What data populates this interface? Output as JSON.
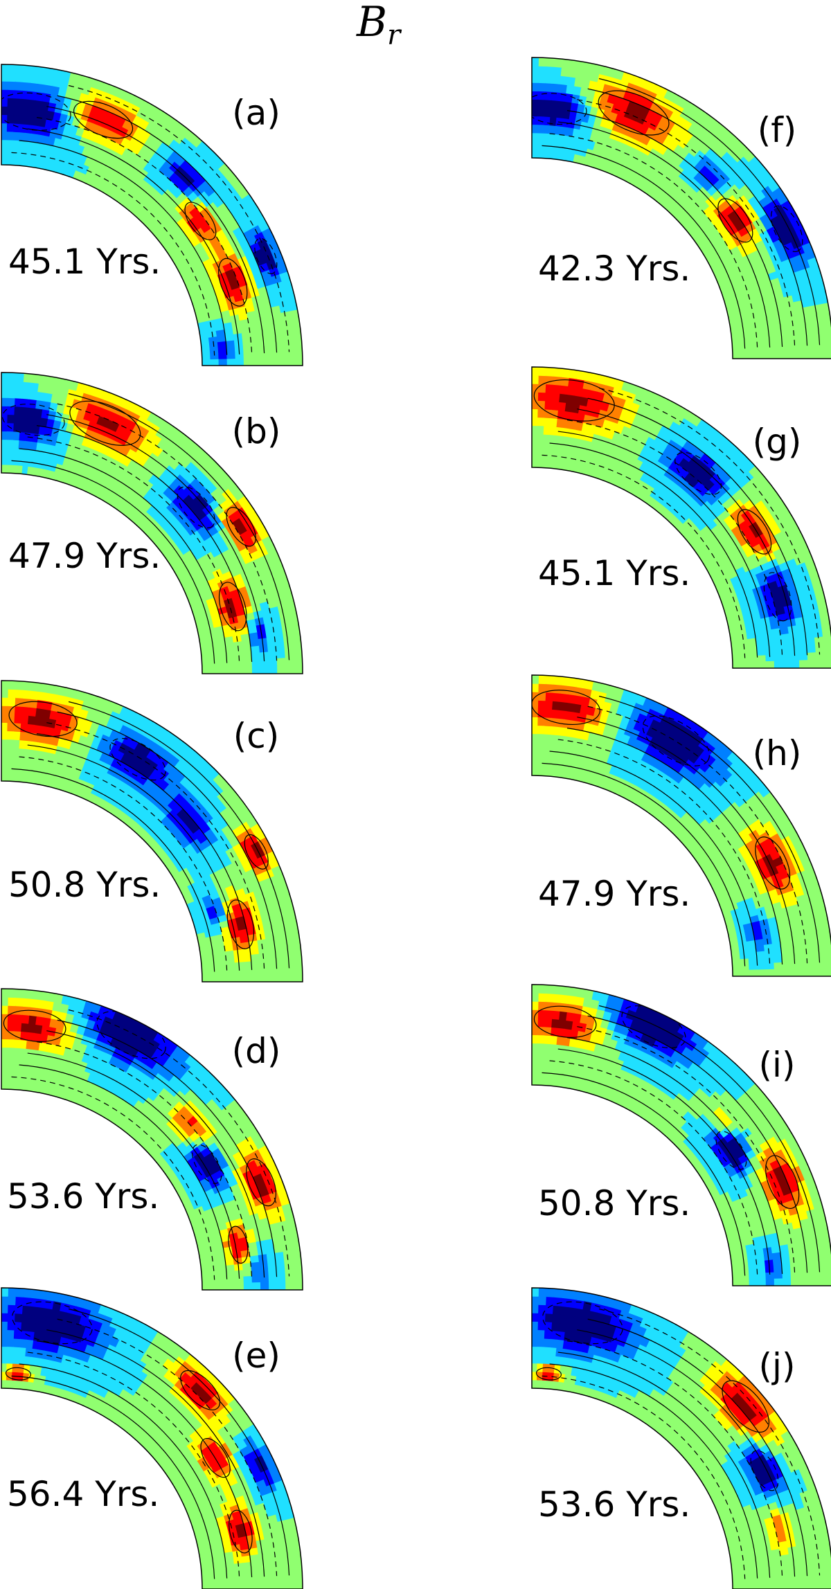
{
  "figure": {
    "title": "B",
    "title_sub": "r"
  },
  "colormap": [
    "#00007f",
    "#0000ff",
    "#0080ff",
    "#20e0ff",
    "#90ff70",
    "#ffff00",
    "#ff8000",
    "#ff0000",
    "#7f0000"
  ],
  "panels": [
    {
      "label": "(a)",
      "time": "45.1 Yrs.",
      "blobs": [
        {
          "t": 0.08,
          "r": 0.55,
          "v": -1.0,
          "s": 0.12
        },
        {
          "t": 0.25,
          "r": 0.65,
          "v": 1.0,
          "s": 0.1
        },
        {
          "t": 0.5,
          "r": 0.62,
          "v": -0.8,
          "s": 0.07
        },
        {
          "t": 0.6,
          "r": 0.45,
          "v": 0.9,
          "s": 0.07
        },
        {
          "t": 0.78,
          "r": 0.45,
          "v": 1.0,
          "s": 0.08
        },
        {
          "t": 0.75,
          "r": 0.85,
          "v": -0.9,
          "s": 0.06
        },
        {
          "t": 0.95,
          "r": 0.2,
          "v": -0.6,
          "s": 0.05
        }
      ]
    },
    {
      "label": "(b)",
      "time": "47.9 Yrs.",
      "blobs": [
        {
          "t": 0.08,
          "r": 0.55,
          "v": -1.0,
          "s": 0.1
        },
        {
          "t": 0.25,
          "r": 0.7,
          "v": 1.0,
          "s": 0.12
        },
        {
          "t": 0.55,
          "r": 0.55,
          "v": -0.9,
          "s": 0.08
        },
        {
          "t": 0.65,
          "r": 0.8,
          "v": 1.0,
          "s": 0.07
        },
        {
          "t": 0.82,
          "r": 0.4,
          "v": 1.0,
          "s": 0.08
        },
        {
          "t": 0.9,
          "r": 0.6,
          "v": -0.6,
          "s": 0.05
        }
      ]
    },
    {
      "label": "(c)",
      "time": "50.8 Yrs.",
      "blobs": [
        {
          "t": 0.1,
          "r": 0.65,
          "v": 1.0,
          "s": 0.11
        },
        {
          "t": 0.35,
          "r": 0.6,
          "v": -0.9,
          "s": 0.1
        },
        {
          "t": 0.55,
          "r": 0.45,
          "v": -0.8,
          "s": 0.08
        },
        {
          "t": 0.7,
          "r": 0.85,
          "v": 1.0,
          "s": 0.06
        },
        {
          "t": 0.85,
          "r": 0.45,
          "v": 1.0,
          "s": 0.08
        },
        {
          "t": 0.8,
          "r": 0.25,
          "v": -0.7,
          "s": 0.05
        }
      ]
    },
    {
      "label": "(d)",
      "time": "53.6 Yrs.",
      "blobs": [
        {
          "t": 0.08,
          "r": 0.65,
          "v": 1.0,
          "s": 0.1
        },
        {
          "t": 0.3,
          "r": 0.85,
          "v": -1.0,
          "s": 0.12
        },
        {
          "t": 0.55,
          "r": 0.5,
          "v": 0.8,
          "s": 0.07
        },
        {
          "t": 0.65,
          "r": 0.4,
          "v": -1.0,
          "s": 0.07
        },
        {
          "t": 0.75,
          "r": 0.8,
          "v": 1.0,
          "s": 0.08
        },
        {
          "t": 0.88,
          "r": 0.4,
          "v": 0.9,
          "s": 0.06
        },
        {
          "t": 0.95,
          "r": 0.6,
          "v": -0.5,
          "s": 0.05
        }
      ]
    },
    {
      "label": "(e)",
      "time": "56.4 Yrs.",
      "blobs": [
        {
          "t": 0.12,
          "r": 0.7,
          "v": -1.0,
          "s": 0.13
        },
        {
          "t": 0.5,
          "r": 0.8,
          "v": 1.0,
          "s": 0.08
        },
        {
          "t": 0.65,
          "r": 0.5,
          "v": 0.9,
          "s": 0.07
        },
        {
          "t": 0.72,
          "r": 0.85,
          "v": -0.8,
          "s": 0.06
        },
        {
          "t": 0.85,
          "r": 0.45,
          "v": 1.0,
          "s": 0.07
        },
        {
          "t": 0.05,
          "r": 0.15,
          "v": 0.9,
          "s": 0.04
        }
      ]
    },
    {
      "label": "(f)",
      "time": "42.3 Yrs.",
      "blobs": [
        {
          "t": 0.06,
          "r": 0.5,
          "v": -1.0,
          "s": 0.1
        },
        {
          "t": 0.25,
          "r": 0.65,
          "v": 1.0,
          "s": 0.12
        },
        {
          "t": 0.5,
          "r": 0.55,
          "v": -0.7,
          "s": 0.06
        },
        {
          "t": 0.62,
          "r": 0.45,
          "v": 1.0,
          "s": 0.08
        },
        {
          "t": 0.7,
          "r": 0.85,
          "v": -1.0,
          "s": 0.08
        }
      ]
    },
    {
      "label": "(g)",
      "time": "45.1 Yrs.",
      "blobs": [
        {
          "t": 0.1,
          "r": 0.7,
          "v": 1.0,
          "s": 0.13
        },
        {
          "t": 0.45,
          "r": 0.55,
          "v": -0.9,
          "s": 0.09
        },
        {
          "t": 0.65,
          "r": 0.6,
          "v": 1.0,
          "s": 0.08
        },
        {
          "t": 0.82,
          "r": 0.55,
          "v": -0.9,
          "s": 0.08
        }
      ]
    },
    {
      "label": "(h)",
      "time": "47.9 Yrs.",
      "blobs": [
        {
          "t": 0.08,
          "r": 0.7,
          "v": 1.0,
          "s": 0.11
        },
        {
          "t": 0.35,
          "r": 0.75,
          "v": -1.0,
          "s": 0.12
        },
        {
          "t": 0.72,
          "r": 0.65,
          "v": 1.0,
          "s": 0.09
        },
        {
          "t": 0.88,
          "r": 0.3,
          "v": -0.6,
          "s": 0.05
        }
      ]
    },
    {
      "label": "(i)",
      "time": "50.8 Yrs.",
      "blobs": [
        {
          "t": 0.08,
          "r": 0.65,
          "v": 1.0,
          "s": 0.1
        },
        {
          "t": 0.28,
          "r": 0.85,
          "v": -1.0,
          "s": 0.11
        },
        {
          "t": 0.55,
          "r": 0.5,
          "v": 0.5,
          "s": 0.05
        },
        {
          "t": 0.62,
          "r": 0.4,
          "v": -1.0,
          "s": 0.07
        },
        {
          "t": 0.75,
          "r": 0.7,
          "v": 1.0,
          "s": 0.09
        },
        {
          "t": 0.95,
          "r": 0.4,
          "v": -0.5,
          "s": 0.05
        }
      ]
    },
    {
      "label": "(j)",
      "time": "53.6 Yrs.",
      "blobs": [
        {
          "t": 0.12,
          "r": 0.7,
          "v": -1.0,
          "s": 0.13
        },
        {
          "t": 0.55,
          "r": 0.8,
          "v": 1.0,
          "s": 0.1
        },
        {
          "t": 0.7,
          "r": 0.6,
          "v": -1.0,
          "s": 0.07
        },
        {
          "t": 0.85,
          "r": 0.55,
          "v": 0.6,
          "s": 0.06
        },
        {
          "t": 0.05,
          "r": 0.15,
          "v": 0.9,
          "s": 0.04
        }
      ]
    }
  ]
}
